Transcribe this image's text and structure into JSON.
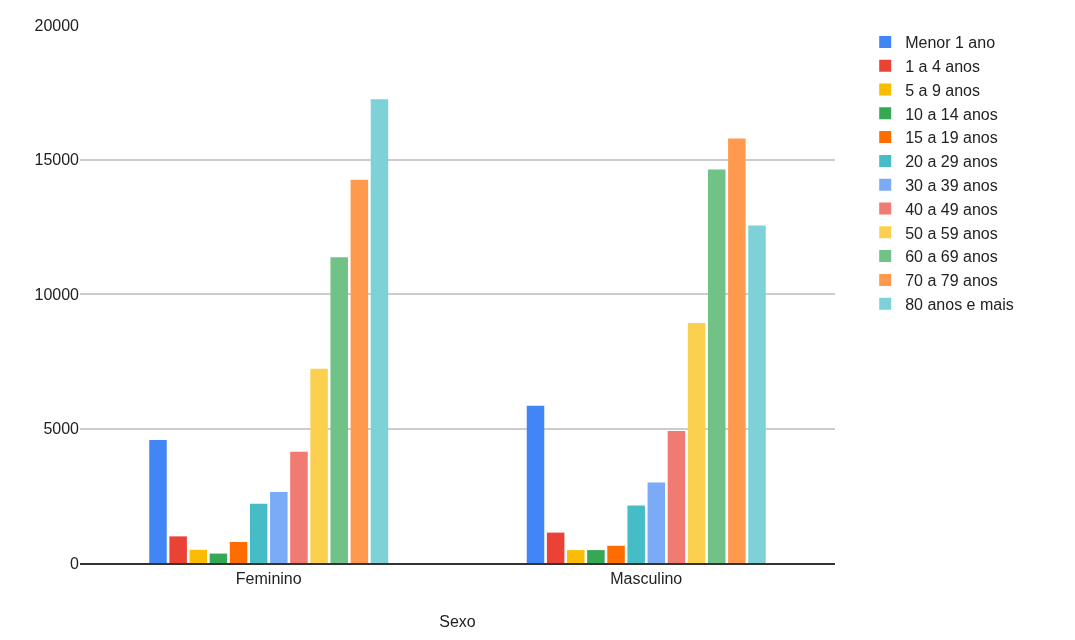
{
  "chart_data": {
    "type": "bar",
    "xlabel": "Sexo",
    "categories": [
      "Feminino",
      "Masculino"
    ],
    "ylim": [
      0,
      20000
    ],
    "yticks": [
      0,
      5000,
      10000,
      15000,
      20000
    ],
    "grid": "y",
    "legend": "right",
    "series": [
      {
        "name": "Menor 1 ano",
        "color": "#4285f4",
        "values": [
          4570,
          5850
        ]
      },
      {
        "name": "1 a 4 anos",
        "color": "#ea4335",
        "values": [
          990,
          1130
        ]
      },
      {
        "name": "5 a 9 anos",
        "color": "#fbbc04",
        "values": [
          490,
          480
        ]
      },
      {
        "name": "10 a 14 anos",
        "color": "#34a853",
        "values": [
          350,
          480
        ]
      },
      {
        "name": "15 a 19 anos",
        "color": "#ff6d01",
        "values": [
          780,
          640
        ]
      },
      {
        "name": "20 a 29 anos",
        "color": "#46bdc6",
        "values": [
          2200,
          2140
        ]
      },
      {
        "name": "30 a 39 anos",
        "color": "#7baaf7",
        "values": [
          2640,
          2990
        ]
      },
      {
        "name": "40 a 49 anos",
        "color": "#f07b72",
        "values": [
          4140,
          4910
        ]
      },
      {
        "name": "50 a 59 anos",
        "color": "#fcd04f",
        "values": [
          7220,
          8920
        ]
      },
      {
        "name": "60 a 69 anos",
        "color": "#71c287",
        "values": [
          11370,
          14630
        ]
      },
      {
        "name": "70 a 79 anos",
        "color": "#ff994d",
        "values": [
          14250,
          15780
        ]
      },
      {
        "name": "80 anos e mais",
        "color": "#7ed1d7",
        "values": [
          17240,
          12550
        ]
      }
    ]
  }
}
